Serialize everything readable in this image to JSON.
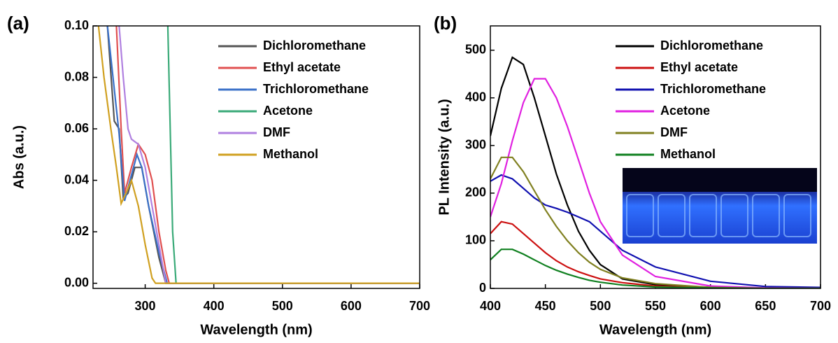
{
  "chart_data": [
    {
      "type": "line",
      "panel_label": "(a)",
      "xlabel": "Wavelength (nm)",
      "ylabel": "Abs (a.u.)",
      "xlim": [
        224,
        700
      ],
      "ylim": [
        -0.002,
        0.1
      ],
      "xticks": [
        300,
        400,
        500,
        600,
        700
      ],
      "yticks": [
        {
          "value": 0,
          "label": "0.00"
        },
        {
          "value": 0.02,
          "label": "0.02"
        },
        {
          "value": 0.04,
          "label": "0.04"
        },
        {
          "value": 0.06,
          "label": "0.06"
        },
        {
          "value": 0.08,
          "label": "0.08"
        },
        {
          "value": 0.1,
          "label": "0.10"
        }
      ],
      "legend": "upper right",
      "series": [
        {
          "name": "Dichloromethane",
          "color": "#555555",
          "x": [
            245,
            255,
            262,
            268,
            275,
            285,
            295,
            305,
            320,
            330,
            700
          ],
          "values": [
            0.1,
            0.063,
            0.06,
            0.033,
            0.035,
            0.045,
            0.045,
            0.03,
            0.01,
            0,
            0
          ]
        },
        {
          "name": "Ethyl acetate",
          "color": "#e05050",
          "x": [
            258,
            265,
            270,
            280,
            290,
            300,
            310,
            320,
            330,
            335,
            700
          ],
          "values": [
            0.1,
            0.06,
            0.035,
            0.045,
            0.054,
            0.05,
            0.04,
            0.02,
            0.005,
            0,
            0
          ]
        },
        {
          "name": "Trichloromethane",
          "color": "#3a70c8",
          "x": [
            245,
            262,
            270,
            280,
            288,
            295,
            305,
            320,
            332,
            700
          ],
          "values": [
            0.1,
            0.058,
            0.032,
            0.042,
            0.05,
            0.045,
            0.03,
            0.012,
            0,
            0
          ]
        },
        {
          "name": "Acetone",
          "color": "#3aaa78",
          "x": [
            333,
            340,
            345,
            700
          ],
          "values": [
            0.1,
            0.02,
            0,
            0
          ]
        },
        {
          "name": "DMF",
          "color": "#b080e0",
          "x": [
            262,
            268,
            275,
            280,
            290,
            300,
            310,
            320,
            330,
            700
          ],
          "values": [
            0.1,
            0.08,
            0.06,
            0.056,
            0.054,
            0.045,
            0.03,
            0.015,
            0,
            0
          ]
        },
        {
          "name": "Methanol",
          "color": "#d0a020",
          "x": [
            232,
            240,
            250,
            258,
            265,
            272,
            280,
            290,
            300,
            310,
            315,
            700
          ],
          "values": [
            0.1,
            0.08,
            0.06,
            0.045,
            0.031,
            0.035,
            0.04,
            0.03,
            0.015,
            0.002,
            0,
            0
          ]
        }
      ]
    },
    {
      "type": "line",
      "panel_label": "(b)",
      "xlabel": "Wavelength (nm)",
      "ylabel": "PL Intensity (a.u.)",
      "xlim": [
        400,
        700
      ],
      "ylim": [
        0,
        551
      ],
      "xticks": [
        400,
        450,
        500,
        550,
        600,
        650,
        700
      ],
      "yticks": [
        0,
        100,
        200,
        300,
        400,
        500
      ],
      "legend": "upper right",
      "x": [
        400,
        410,
        420,
        430,
        440,
        450,
        460,
        470,
        480,
        490,
        500,
        520,
        550,
        600,
        650,
        700
      ],
      "series": [
        {
          "name": "Dichloromethane",
          "color": "#000000",
          "values": [
            320,
            420,
            485,
            470,
            400,
            320,
            240,
            175,
            120,
            80,
            50,
            20,
            8,
            2,
            0,
            0
          ]
        },
        {
          "name": "Ethyl acetate",
          "color": "#cc1010",
          "values": [
            115,
            140,
            135,
            115,
            95,
            75,
            58,
            45,
            35,
            27,
            20,
            12,
            5,
            1,
            0,
            0
          ]
        },
        {
          "name": "Trichloromethane",
          "color": "#1010b0",
          "values": [
            225,
            238,
            230,
            210,
            190,
            175,
            168,
            160,
            150,
            140,
            120,
            80,
            45,
            15,
            4,
            2
          ]
        },
        {
          "name": "Acetone",
          "color": "#e020e0",
          "values": [
            150,
            220,
            310,
            390,
            440,
            440,
            400,
            340,
            270,
            200,
            140,
            70,
            25,
            5,
            1,
            0
          ]
        },
        {
          "name": "DMF",
          "color": "#808020",
          "values": [
            230,
            275,
            275,
            245,
            205,
            165,
            130,
            100,
            75,
            55,
            40,
            22,
            10,
            2,
            0,
            0
          ]
        },
        {
          "name": "Methanol",
          "color": "#108020",
          "values": [
            60,
            82,
            82,
            72,
            60,
            48,
            38,
            30,
            23,
            17,
            13,
            7,
            3,
            1,
            0,
            0
          ]
        }
      ]
    }
  ]
}
